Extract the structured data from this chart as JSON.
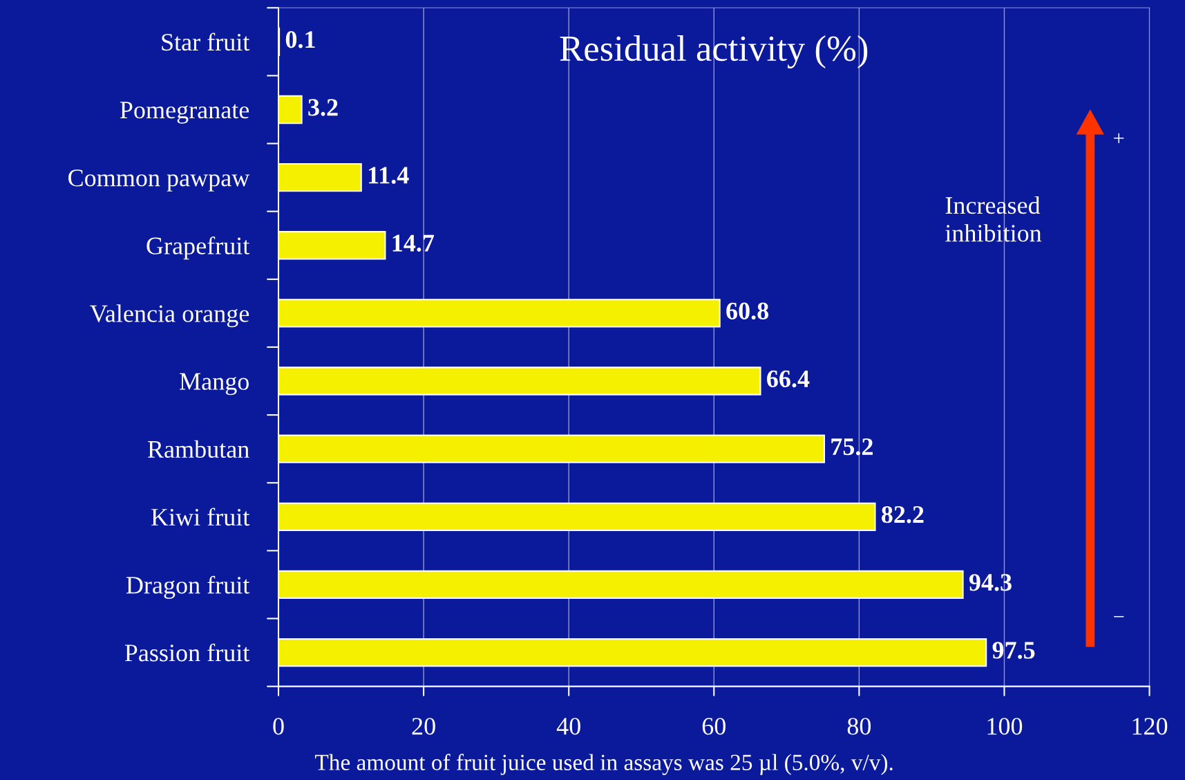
{
  "chart_data": {
    "type": "bar",
    "orientation": "horizontal",
    "title": "Residual activity (%)",
    "categories": [
      "Star fruit",
      "Pomegranate",
      "Common pawpaw",
      "Grapefruit",
      "Valencia orange",
      "Mango",
      "Rambutan",
      "Kiwi fruit",
      "Dragon fruit",
      "Passion fruit"
    ],
    "values": [
      0.1,
      3.2,
      11.4,
      14.7,
      60.8,
      66.4,
      75.2,
      82.2,
      94.3,
      97.5
    ],
    "color": "#f5f000",
    "xlim": [
      0,
      120
    ],
    "xticks": [
      0,
      20,
      40,
      60,
      80,
      100,
      120
    ],
    "grid": "x",
    "data_labels": true,
    "annotations": [
      "Increased\ninhibition",
      "+",
      "−",
      "The amount of fruit juice used in assays was 25 µl (5.0%, v/v)."
    ]
  }
}
